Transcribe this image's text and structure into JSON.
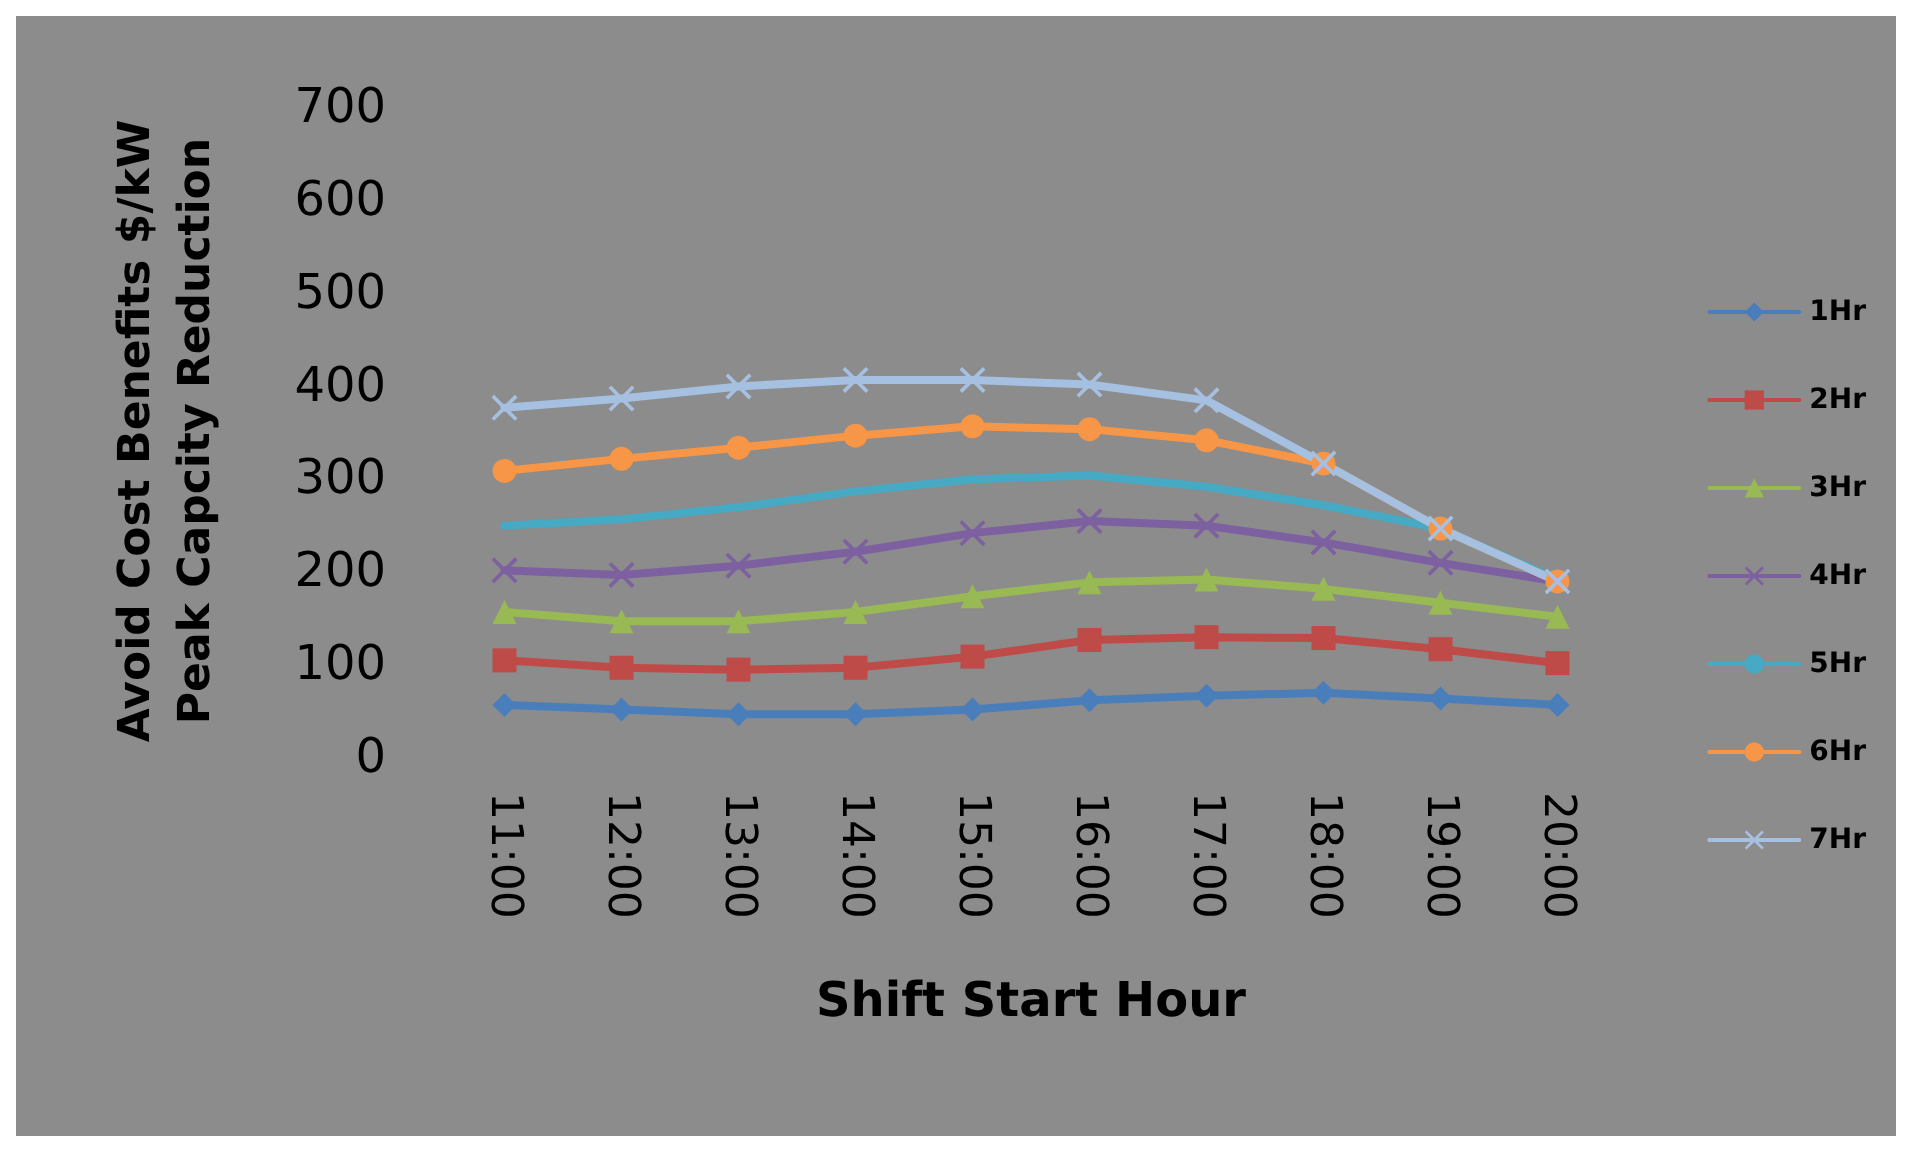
{
  "chart_data": {
    "type": "line",
    "xlabel": "Shift Start Hour",
    "ylabel": "Avoid Cost Benefits $/kW\nPeak Capcity Reduction",
    "categories": [
      "11:00",
      "12:00",
      "13:00",
      "14:00",
      "15:00",
      "16:00",
      "17:00",
      "18:00",
      "19:00",
      "20:00"
    ],
    "series": [
      {
        "name": "1Hr",
        "color": "#4a7ebb",
        "marker": "diamond",
        "values": [
          55,
          50,
          45,
          45,
          50,
          60,
          65,
          68,
          62,
          55
        ]
      },
      {
        "name": "2Hr",
        "color": "#be4b48",
        "marker": "square",
        "values": [
          103,
          95,
          93,
          95,
          107,
          125,
          128,
          127,
          115,
          100
        ]
      },
      {
        "name": "3Hr",
        "color": "#98b954",
        "marker": "triangle",
        "values": [
          155,
          145,
          145,
          155,
          172,
          187,
          190,
          180,
          165,
          150
        ]
      },
      {
        "name": "4Hr",
        "color": "#7d60a0",
        "marker": "cross",
        "values": [
          200,
          195,
          205,
          220,
          240,
          253,
          248,
          230,
          208,
          188
        ]
      },
      {
        "name": "5Hr",
        "color": "#46aac5",
        "marker": "none",
        "values": [
          248,
          255,
          268,
          285,
          298,
          302,
          290,
          270,
          245,
          190
        ]
      },
      {
        "name": "6Hr",
        "color": "#f79646",
        "marker": "circle",
        "values": [
          307,
          320,
          332,
          345,
          355,
          352,
          340,
          315,
          245,
          188
        ]
      },
      {
        "name": "7Hr",
        "color": "#a5c0e0",
        "marker": "cross",
        "values": [
          375,
          385,
          398,
          405,
          405,
          400,
          383,
          315,
          245,
          188
        ]
      }
    ],
    "ylim": [
      0,
      700
    ],
    "yticks": [
      0,
      100,
      200,
      300,
      400,
      500,
      600,
      700
    ],
    "grid": false,
    "legend": "right",
    "line_style": "solid"
  }
}
